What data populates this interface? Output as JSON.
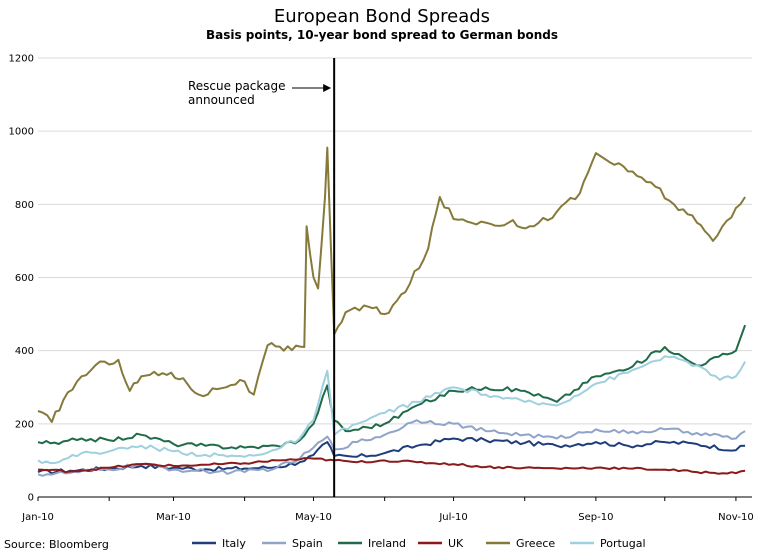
{
  "chart_data": {
    "type": "line",
    "title": "European Bond Spreads",
    "subtitle": "Basis points, 10-year bond spread to German bonds",
    "xlabel": "",
    "ylabel": "",
    "ylim": [
      0,
      1200
    ],
    "yticks": [
      0,
      200,
      400,
      600,
      800,
      1000,
      1200
    ],
    "xticks": [
      "Jan-10",
      "Mar-10",
      "May-10",
      "Jul-10",
      "Sep-10",
      "Nov-10"
    ],
    "xlim": [
      "2010-01-01",
      "2010-11-08"
    ],
    "grid": "horizontal",
    "legend_position": "bottom",
    "annotations": [
      {
        "text_lines": [
          "Rescue package",
          "announced"
        ],
        "x": "2010-05-10",
        "type": "vertical-line"
      }
    ],
    "source": "Source: Bloomberg",
    "series": [
      {
        "name": "Italy",
        "color": "#1f3d7a",
        "points": [
          [
            "2010-01-01",
            68
          ],
          [
            "2010-01-15",
            72
          ],
          [
            "2010-02-01",
            78
          ],
          [
            "2010-02-15",
            85
          ],
          [
            "2010-03-01",
            80
          ],
          [
            "2010-03-15",
            76
          ],
          [
            "2010-04-01",
            78
          ],
          [
            "2010-04-15",
            82
          ],
          [
            "2010-04-25",
            95
          ],
          [
            "2010-05-01",
            115
          ],
          [
            "2010-05-07",
            150
          ],
          [
            "2010-05-10",
            112
          ],
          [
            "2010-05-20",
            110
          ],
          [
            "2010-06-01",
            120
          ],
          [
            "2010-06-15",
            140
          ],
          [
            "2010-07-01",
            160
          ],
          [
            "2010-07-15",
            155
          ],
          [
            "2010-08-01",
            148
          ],
          [
            "2010-08-15",
            140
          ],
          [
            "2010-09-01",
            150
          ],
          [
            "2010-09-15",
            140
          ],
          [
            "2010-10-01",
            150
          ],
          [
            "2010-10-15",
            145
          ],
          [
            "2010-11-01",
            128
          ],
          [
            "2010-11-05",
            140
          ]
        ]
      },
      {
        "name": "Spain",
        "color": "#8fa4c8",
        "points": [
          [
            "2010-01-01",
            62
          ],
          [
            "2010-01-15",
            66
          ],
          [
            "2010-02-01",
            75
          ],
          [
            "2010-02-15",
            90
          ],
          [
            "2010-03-01",
            75
          ],
          [
            "2010-03-15",
            70
          ],
          [
            "2010-04-01",
            68
          ],
          [
            "2010-04-15",
            80
          ],
          [
            "2010-04-25",
            105
          ],
          [
            "2010-05-01",
            135
          ],
          [
            "2010-05-07",
            165
          ],
          [
            "2010-05-10",
            130
          ],
          [
            "2010-05-20",
            150
          ],
          [
            "2010-06-01",
            170
          ],
          [
            "2010-06-15",
            210
          ],
          [
            "2010-07-01",
            200
          ],
          [
            "2010-07-15",
            180
          ],
          [
            "2010-08-01",
            170
          ],
          [
            "2010-08-15",
            160
          ],
          [
            "2010-09-01",
            185
          ],
          [
            "2010-09-15",
            175
          ],
          [
            "2010-10-01",
            185
          ],
          [
            "2010-10-15",
            175
          ],
          [
            "2010-11-01",
            160
          ],
          [
            "2010-11-05",
            180
          ]
        ]
      },
      {
        "name": "Ireland",
        "color": "#1f6b4a",
        "points": [
          [
            "2010-01-01",
            150
          ],
          [
            "2010-01-10",
            145
          ],
          [
            "2010-01-20",
            160
          ],
          [
            "2010-02-01",
            155
          ],
          [
            "2010-02-15",
            170
          ],
          [
            "2010-03-01",
            145
          ],
          [
            "2010-03-15",
            140
          ],
          [
            "2010-04-01",
            135
          ],
          [
            "2010-04-15",
            140
          ],
          [
            "2010-04-25",
            155
          ],
          [
            "2010-05-01",
            200
          ],
          [
            "2010-05-07",
            305
          ],
          [
            "2010-05-10",
            210
          ],
          [
            "2010-05-15",
            180
          ],
          [
            "2010-06-01",
            200
          ],
          [
            "2010-06-15",
            250
          ],
          [
            "2010-07-01",
            290
          ],
          [
            "2010-07-15",
            300
          ],
          [
            "2010-08-01",
            290
          ],
          [
            "2010-08-15",
            260
          ],
          [
            "2010-09-01",
            330
          ],
          [
            "2010-09-15",
            350
          ],
          [
            "2010-10-01",
            410
          ],
          [
            "2010-10-15",
            360
          ],
          [
            "2010-11-01",
            400
          ],
          [
            "2010-11-05",
            470
          ]
        ]
      },
      {
        "name": "UK",
        "color": "#8b1a1a",
        "points": [
          [
            "2010-01-01",
            75
          ],
          [
            "2010-01-15",
            70
          ],
          [
            "2010-02-01",
            80
          ],
          [
            "2010-02-15",
            90
          ],
          [
            "2010-03-01",
            85
          ],
          [
            "2010-03-15",
            88
          ],
          [
            "2010-04-01",
            92
          ],
          [
            "2010-04-15",
            100
          ],
          [
            "2010-05-01",
            105
          ],
          [
            "2010-05-10",
            100
          ],
          [
            "2010-05-20",
            95
          ],
          [
            "2010-06-01",
            100
          ],
          [
            "2010-06-15",
            95
          ],
          [
            "2010-07-01",
            90
          ],
          [
            "2010-07-15",
            82
          ],
          [
            "2010-08-01",
            80
          ],
          [
            "2010-08-15",
            78
          ],
          [
            "2010-09-01",
            80
          ],
          [
            "2010-09-15",
            78
          ],
          [
            "2010-10-01",
            75
          ],
          [
            "2010-10-15",
            68
          ],
          [
            "2010-11-01",
            65
          ],
          [
            "2010-11-05",
            72
          ]
        ]
      },
      {
        "name": "Greece",
        "color": "#857a3a",
        "points": [
          [
            "2010-01-01",
            235
          ],
          [
            "2010-01-07",
            205
          ],
          [
            "2010-01-12",
            265
          ],
          [
            "2010-01-20",
            330
          ],
          [
            "2010-01-30",
            370
          ],
          [
            "2010-02-05",
            375
          ],
          [
            "2010-02-10",
            290
          ],
          [
            "2010-02-15",
            330
          ],
          [
            "2010-02-28",
            340
          ],
          [
            "2010-03-07",
            310
          ],
          [
            "2010-03-12",
            280
          ],
          [
            "2010-03-20",
            295
          ],
          [
            "2010-03-30",
            320
          ],
          [
            "2010-04-05",
            280
          ],
          [
            "2010-04-11",
            415
          ],
          [
            "2010-04-18",
            400
          ],
          [
            "2010-04-27",
            410
          ],
          [
            "2010-04-28",
            740
          ],
          [
            "2010-05-01",
            600
          ],
          [
            "2010-05-03",
            570
          ],
          [
            "2010-05-06",
            820
          ],
          [
            "2010-05-07",
            955
          ],
          [
            "2010-05-10",
            445
          ],
          [
            "2010-05-15",
            505
          ],
          [
            "2010-05-25",
            520
          ],
          [
            "2010-06-01",
            500
          ],
          [
            "2010-06-10",
            560
          ],
          [
            "2010-06-20",
            680
          ],
          [
            "2010-06-25",
            820
          ],
          [
            "2010-07-01",
            760
          ],
          [
            "2010-07-15",
            750
          ],
          [
            "2010-07-25",
            750
          ],
          [
            "2010-08-05",
            740
          ],
          [
            "2010-08-15",
            780
          ],
          [
            "2010-08-25",
            830
          ],
          [
            "2010-09-01",
            940
          ],
          [
            "2010-09-15",
            890
          ],
          [
            "2010-09-25",
            860
          ],
          [
            "2010-10-05",
            800
          ],
          [
            "2010-10-15",
            750
          ],
          [
            "2010-10-22",
            700
          ],
          [
            "2010-11-01",
            790
          ],
          [
            "2010-11-05",
            820
          ]
        ]
      },
      {
        "name": "Portugal",
        "color": "#9fd0de",
        "points": [
          [
            "2010-01-01",
            100
          ],
          [
            "2010-01-10",
            95
          ],
          [
            "2010-01-20",
            120
          ],
          [
            "2010-02-01",
            125
          ],
          [
            "2010-02-15",
            140
          ],
          [
            "2010-03-01",
            125
          ],
          [
            "2010-03-15",
            115
          ],
          [
            "2010-04-01",
            110
          ],
          [
            "2010-04-15",
            130
          ],
          [
            "2010-04-25",
            160
          ],
          [
            "2010-05-01",
            210
          ],
          [
            "2010-05-07",
            345
          ],
          [
            "2010-05-10",
            170
          ],
          [
            "2010-05-20",
            200
          ],
          [
            "2010-06-01",
            230
          ],
          [
            "2010-06-15",
            260
          ],
          [
            "2010-07-01",
            300
          ],
          [
            "2010-07-15",
            280
          ],
          [
            "2010-08-01",
            260
          ],
          [
            "2010-08-15",
            250
          ],
          [
            "2010-09-01",
            310
          ],
          [
            "2010-09-15",
            340
          ],
          [
            "2010-10-01",
            385
          ],
          [
            "2010-10-15",
            360
          ],
          [
            "2010-10-25",
            320
          ],
          [
            "2010-11-01",
            330
          ],
          [
            "2010-11-05",
            370
          ]
        ]
      }
    ]
  }
}
